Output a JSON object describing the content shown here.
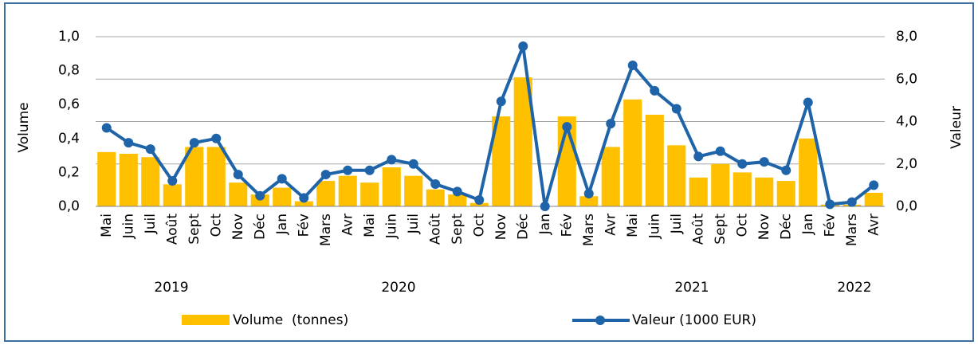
{
  "chart_data": {
    "type": "bar-line",
    "categories": [
      "Mai",
      "Juin",
      "Juil",
      "Août",
      "Sept",
      "Oct",
      "Nov",
      "Déc",
      "Jan",
      "Fév",
      "Mars",
      "Avr",
      "Mai",
      "Juin",
      "Juil",
      "Août",
      "Sept",
      "Oct",
      "Nov",
      "Déc",
      "Jan",
      "Fév",
      "Mars",
      "Avr",
      "Mai",
      "Juin",
      "Juil",
      "Août",
      "Sept",
      "Oct",
      "Nov",
      "Déc",
      "Jan",
      "Fév",
      "Mars",
      "Avr"
    ],
    "x_groups": [
      "2019",
      "2020",
      "2021",
      "2022"
    ],
    "ylabel": "Volume",
    "y2label": "Valeur",
    "ylim": [
      0,
      1.0
    ],
    "yticks": [
      {
        "value": 0,
        "label": "0,0"
      },
      {
        "value": 0.2,
        "label": "0,2"
      },
      {
        "value": 0.4,
        "label": "0,4"
      },
      {
        "value": 0.6,
        "label": "0,6"
      },
      {
        "value": 0.8,
        "label": "0,8"
      },
      {
        "value": 1.0,
        "label": "1,0"
      }
    ],
    "y2lim": [
      0,
      8
    ],
    "y2ticks": [
      {
        "value": 0,
        "label": "0,0"
      },
      {
        "value": 2,
        "label": "2,0"
      },
      {
        "value": 4,
        "label": "4,0"
      },
      {
        "value": 6,
        "label": "6,0"
      },
      {
        "value": 8,
        "label": "8,0"
      }
    ],
    "grid": true,
    "series": [
      {
        "name": "Volume  (tonnes)",
        "type": "bar",
        "color": "#ffc000",
        "values": [
          0.32,
          0.31,
          0.29,
          0.13,
          0.35,
          0.35,
          0.14,
          0.07,
          0.11,
          0.03,
          0.15,
          0.18,
          0.14,
          0.23,
          0.18,
          0.1,
          0.07,
          0.02,
          0.53,
          0.76,
          0,
          0.53,
          0.06,
          0.35,
          0.63,
          0.54,
          0.36,
          0.17,
          0.25,
          0.2,
          0.17,
          0.15,
          0.4,
          0.01,
          0.01,
          0.08
        ]
      },
      {
        "name": "Valeur (1000 EUR)",
        "type": "line",
        "axis": "y2",
        "color": "#1f64a8",
        "values": [
          3.7,
          3.0,
          2.7,
          1.2,
          3.0,
          3.2,
          1.5,
          0.5,
          1.3,
          0.4,
          1.5,
          1.7,
          1.7,
          2.2,
          2.0,
          1.05,
          0.7,
          0.3,
          4.95,
          7.55,
          0,
          3.75,
          0.6,
          3.9,
          6.65,
          5.45,
          4.6,
          2.35,
          2.6,
          2.0,
          2.1,
          1.7,
          4.9,
          0.1,
          0.2,
          1.0
        ]
      }
    ]
  }
}
